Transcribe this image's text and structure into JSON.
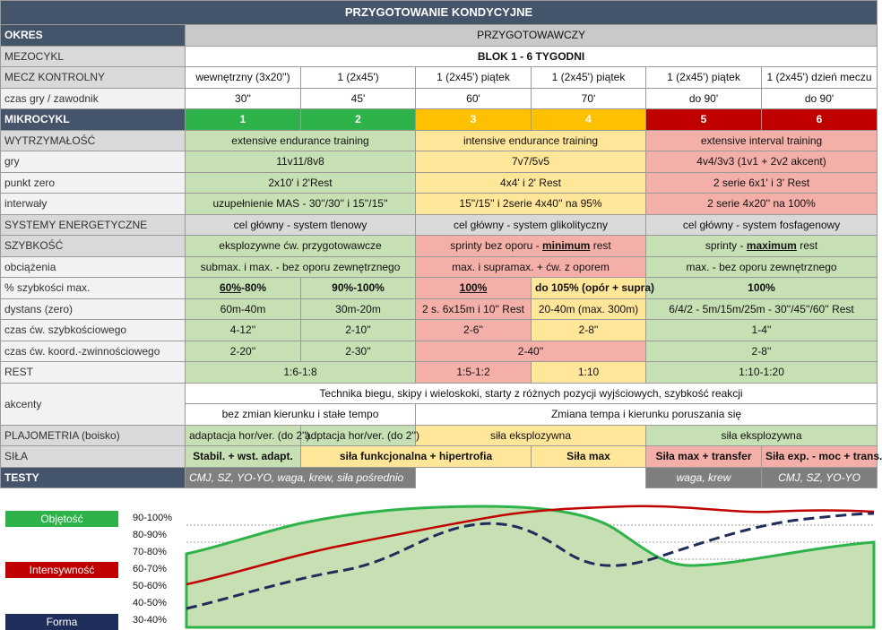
{
  "title": "PRZYGOTOWANIE KONDYCYJNE",
  "rows": {
    "okres": {
      "label": "OKRES",
      "value": "PRZYGOTOWAWCZY"
    },
    "mezocykl": {
      "label": "MEZOCYKL",
      "value": "BLOK 1 - 6 TYGODNI"
    },
    "mecz": {
      "label": "MECZ KONTROLNY",
      "values": [
        "wewnętrzny (3x20'')",
        "1 (2x45')",
        "1 (2x45') piątek",
        "1 (2x45') piątek",
        "1 (2x45') piątek",
        "1 (2x45')  dzień meczu"
      ]
    },
    "czas": {
      "label": "czas gry / zawodnik",
      "values": [
        "30''",
        "45'",
        "60'",
        "70'",
        "do 90'",
        "do 90'"
      ]
    },
    "mikro": {
      "label": "MIKROCYKL",
      "values": [
        "1",
        "2",
        "3",
        "4",
        "5",
        "6"
      ]
    },
    "wytrz": {
      "label": "WYTRZYMAŁOŚĆ",
      "values": [
        "extensive endurance training",
        "intensive endurance training",
        "extensive interval training"
      ]
    },
    "gry": {
      "label": "gry",
      "values": [
        "11v11/8v8",
        "7v7/5v5",
        "4v4/3v3 (1v1 + 2v2 akcent)"
      ]
    },
    "punkt": {
      "label": "punkt zero",
      "values": [
        "2x10' i 2'Rest",
        "4x4' i 2' Rest",
        "2 serie 6x1' i 3' Rest"
      ]
    },
    "interw": {
      "label": "interwały",
      "values": [
        "uzupełnienie MAS - 30''/30'' i 15''/15''",
        "15''/15'' i 2serie 4x40'' na 95%",
        "2 serie 4x20'' na 100%"
      ]
    },
    "systemy": {
      "label": "SYSTEMY ENERGETYCZNE",
      "values": [
        "cel główny - system tlenowy",
        "cel główny - system glikolityczny",
        "cel główny - system fosfagenowy"
      ]
    },
    "szyb": {
      "label": "SZYBKOŚĆ",
      "v1": "eksplozywne ćw. przygotowawcze",
      "v2a": "sprinty bez oporu - ",
      "v2b": "minimum",
      "v2c": " rest",
      "v3a": "sprinty - ",
      "v3b": "maximum",
      "v3c": " rest"
    },
    "obc": {
      "label": "obciążenia",
      "values": [
        "submax. i max. - bez oporu zewnętrznego",
        "max. i supramax. + ćw. z oporem",
        "max. - bez oporu zewnętrznego"
      ]
    },
    "proc": {
      "label": "% szybkości max.",
      "v1a": "60%",
      "v1b": "-80%",
      "v2": "90%-100%",
      "v3": "100%",
      "v4": "do 105% (opór + supra)",
      "v5": "100%"
    },
    "dyst": {
      "label": "dystans (zero)",
      "values": [
        "60m-40m",
        "30m-20m",
        "2 s. 6x15m i 10'' Rest",
        "20-40m (max. 300m)",
        "6/4/2 - 5m/15m/25m - 30''/45''/60'' Rest"
      ]
    },
    "czasszyb": {
      "label": "czas ćw. szybkościowego",
      "values": [
        "4-12''",
        "2-10''",
        "2-6''",
        "2-8''",
        "1-4''"
      ]
    },
    "czaskoord": {
      "label": "czas ćw. koord.-zwinnościowego",
      "values": [
        "2-20''",
        "2-30''",
        "2-40''",
        "2-8''"
      ]
    },
    "rest": {
      "label": "REST",
      "values": [
        "1:6-1:8",
        "1:5-1:2",
        "1:10",
        "1:10-1:20"
      ]
    },
    "akcenty": {
      "label": "akcenty",
      "top": "Technika biegu, skipy i wieloskoki, starty z różnych pozycji wyjściowych, szybkość reakcji",
      "bottom": [
        "bez zmian kierunku i stałe tempo",
        "Zmiana tempa i kierunku poruszania się"
      ]
    },
    "plajo": {
      "label": "PLAJOMETRIA (boisko)",
      "values": [
        "adaptacja hor/ver. (do 2'')",
        "adptacja hor/ver. (do 2'')",
        "siła eksplozywna",
        "siła eksplozywna"
      ]
    },
    "sila": {
      "label": "SIŁA",
      "values": [
        "Stabil. + wst. adapt.",
        "siła funkcjonalna + hipertrofia",
        "Siła max",
        "Siła max + transfer",
        "Siła exp. - moc + trans."
      ]
    },
    "testy": {
      "label": "TESTY",
      "values": [
        "CMJ, SZ, YO-YO, waga, krew, siła pośrednio",
        "waga, krew",
        "CMJ, SZ, YO-YO"
      ]
    }
  },
  "chart_data": {
    "type": "line",
    "legend": {
      "objetosc": "Objętość",
      "intensywnosc": "Intensywność",
      "forma": "Forma"
    },
    "scale": [
      "90-100%",
      "80-90%",
      "70-80%",
      "60-70%",
      "50-60%",
      "40-50%",
      "30-40%"
    ],
    "colors": {
      "objetosc": "#2db34a",
      "intensywnosc": "#c00000",
      "forma": "#1f2d5a"
    }
  }
}
